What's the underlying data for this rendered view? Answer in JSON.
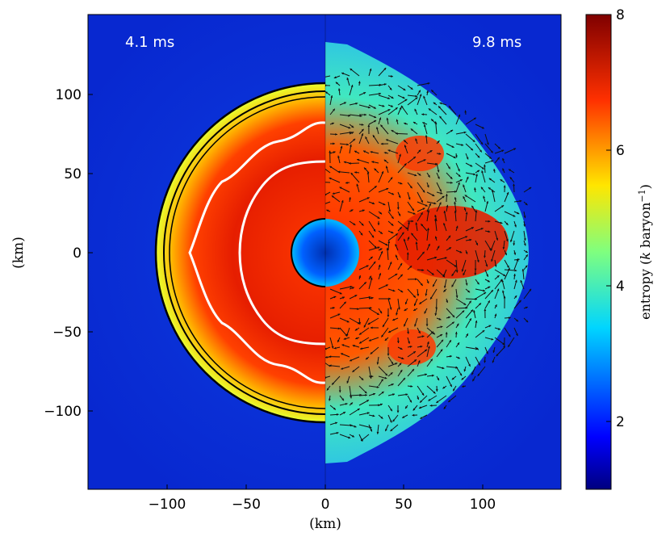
{
  "chart_data": {
    "type": "heatmap",
    "title": "",
    "xlabel": "(km)",
    "ylabel": "(km)",
    "xlim": [
      -150,
      150
    ],
    "ylim": [
      -150,
      150
    ],
    "xticks": [
      -100,
      -50,
      0,
      50,
      100
    ],
    "xtick_labels": [
      "−100",
      "−50",
      "0",
      "50",
      "100"
    ],
    "yticks": [
      100,
      50,
      0,
      -50,
      -100
    ],
    "ytick_labels": [
      "100",
      "50",
      "0",
      "−50",
      "−100"
    ],
    "annotations": [
      {
        "text": "4.1 ms",
        "x": -112,
        "y": 133
      },
      {
        "text": "9.8 ms",
        "x": 110,
        "y": 133
      }
    ],
    "panels": [
      {
        "name": "left-half",
        "time": "4.1 ms",
        "shock_radius_km": 105,
        "inner_core_radius_km": 20
      },
      {
        "name": "right-half",
        "time": "9.8 ms",
        "shock_radius_km": 130,
        "inner_core_radius_km": 18
      }
    ],
    "colorbar": {
      "label": "entropy (k baryon⁻¹)",
      "label_main": "entropy (",
      "label_k": "k",
      "label_unit": " baryon",
      "label_exp": "−1",
      "label_close": ")",
      "range": [
        1,
        8
      ],
      "ticks": [
        2,
        4,
        6,
        8
      ],
      "tick_labels": [
        "2",
        "4",
        "6",
        "8"
      ]
    }
  }
}
